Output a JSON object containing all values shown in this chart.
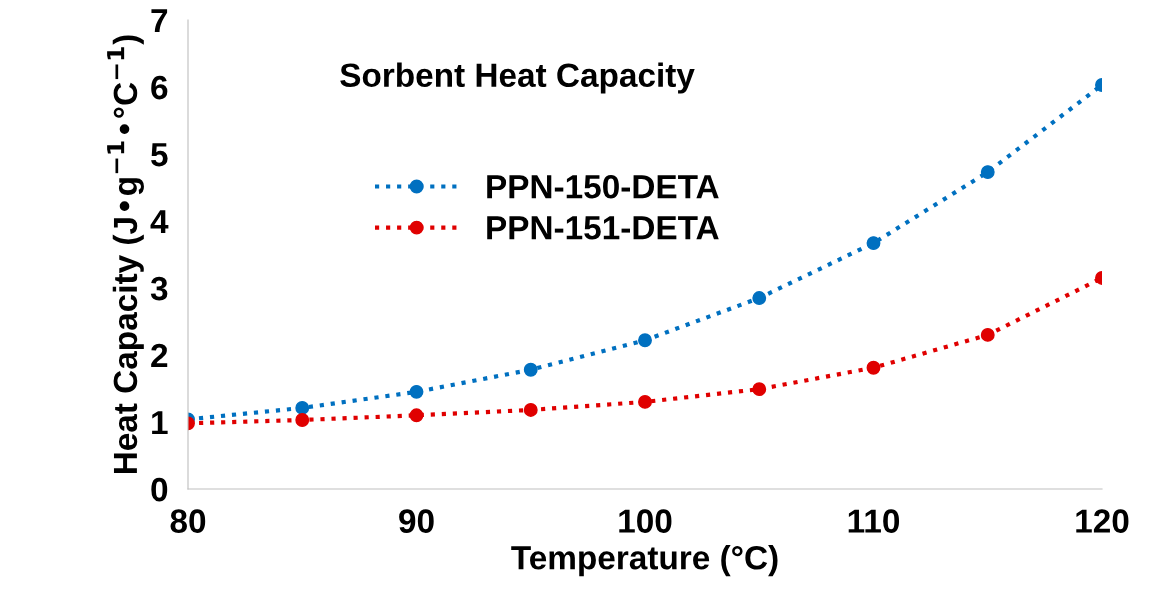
{
  "chart_data": {
    "type": "line",
    "title": "Sorbent Heat Capacity",
    "xlabel": "Temperature (°C)",
    "ylabel": "Heat Capacity (J•g$^{−1}$•°C$^{−1}$)",
    "x": [
      80,
      85,
      90,
      95,
      100,
      105,
      110,
      115,
      120
    ],
    "series": [
      {
        "name": "PPN-150-DETA",
        "color": "#0070c0",
        "values": [
          1.04,
          1.21,
          1.45,
          1.78,
          2.22,
          2.85,
          3.67,
          4.73,
          6.03
        ]
      },
      {
        "name": "PPN-151-DETA",
        "color": "#e00000",
        "values": [
          0.98,
          1.03,
          1.1,
          1.18,
          1.3,
          1.49,
          1.81,
          2.3,
          3.15
        ]
      }
    ],
    "xlim": [
      80,
      120
    ],
    "xticks": [
      80,
      90,
      100,
      110,
      120
    ],
    "ylim": [
      0,
      7
    ],
    "yticks": [
      0,
      1,
      2,
      3,
      4,
      5,
      6,
      7
    ],
    "grid": false,
    "legend": "top left",
    "marker": "circle",
    "line_style": "dotted"
  }
}
